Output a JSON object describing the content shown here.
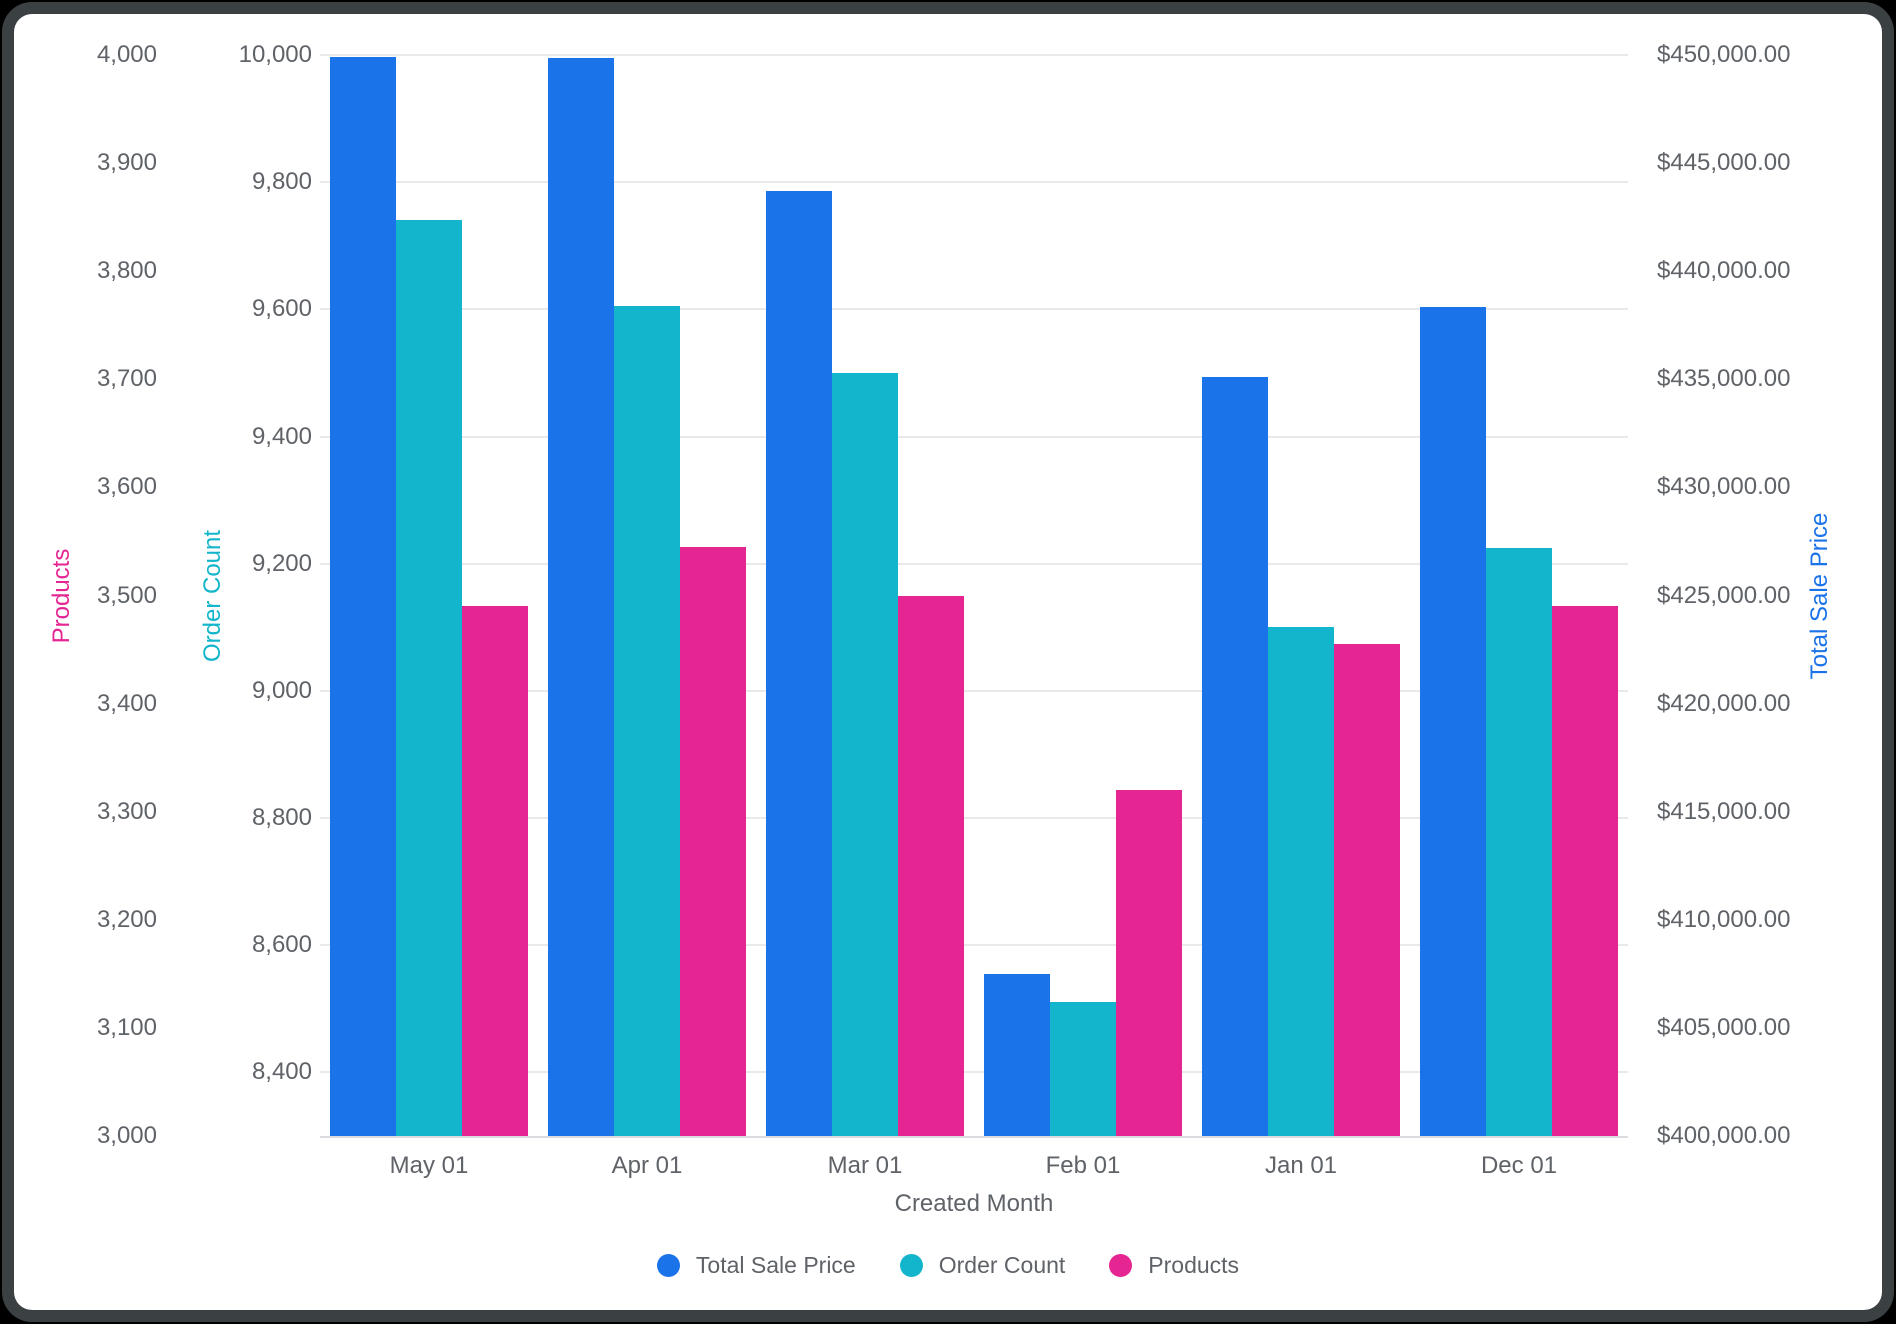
{
  "frame": {
    "outer_background": "#000000",
    "border_color": "#3B4043",
    "card_background": "#FFFFFF"
  },
  "styles": {
    "tick_label_color": "#5F6368",
    "grid_color": "#E9E9E9",
    "baseline_color": "#DADCE0"
  },
  "chart_data": {
    "type": "bar",
    "categories": [
      "May 01",
      "Apr 01",
      "Mar 01",
      "Feb 01",
      "Jan 01",
      "Dec 01"
    ],
    "x_axis": {
      "title": "Created Month"
    },
    "axes": [
      {
        "id": "products",
        "title": "Products",
        "color": "#E52592",
        "side": "left-outer",
        "min": 3000,
        "max": 4000,
        "tick_values": [
          4000,
          3900,
          3800,
          3700,
          3600,
          3500,
          3400,
          3300,
          3200,
          3100,
          3000
        ],
        "tick_labels": [
          "4,000",
          "3,900",
          "3,800",
          "3,700",
          "3,600",
          "3,500",
          "3,400",
          "3,300",
          "3,200",
          "3,100",
          "3,000"
        ]
      },
      {
        "id": "order_count",
        "title": "Order Count",
        "color": "#12B5CB",
        "side": "left-inner",
        "min": 8300,
        "max": 10000,
        "tick_values": [
          10000,
          9800,
          9600,
          9400,
          9200,
          9000,
          8800,
          8600,
          8400
        ],
        "tick_labels": [
          "10,000",
          "9,800",
          "9,600",
          "9,400",
          "9,200",
          "9,000",
          "8,800",
          "8,600",
          "8,400"
        ]
      },
      {
        "id": "total_sale_price",
        "title": "Total Sale Price",
        "color": "#1A73E8",
        "side": "right",
        "min": 400000,
        "max": 450000,
        "tick_values": [
          450000,
          445000,
          440000,
          435000,
          430000,
          425000,
          420000,
          415000,
          410000,
          405000,
          400000
        ],
        "tick_labels": [
          "$450,000.00",
          "$445,000.00",
          "$440,000.00",
          "$435,000.00",
          "$430,000.00",
          "$425,000.00",
          "$420,000.00",
          "$415,000.00",
          "$410,000.00",
          "$405,000.00",
          "$400,000.00"
        ]
      }
    ],
    "series": [
      {
        "name": "Total Sale Price",
        "axis": "total_sale_price",
        "color": "#1A73E8",
        "values": [
          449900,
          449870,
          443700,
          407500,
          435100,
          438350
        ]
      },
      {
        "name": "Order Count",
        "axis": "order_count",
        "color": "#12B5CB",
        "values": [
          9740,
          9605,
          9500,
          8510,
          9100,
          9225
        ]
      },
      {
        "name": "Products",
        "axis": "products",
        "color": "#E52592",
        "values": [
          3490,
          3545,
          3500,
          3320,
          3455,
          3490
        ]
      }
    ],
    "legend": {
      "position": "bottom",
      "items": [
        "Total Sale Price",
        "Order Count",
        "Products"
      ]
    },
    "grid": {
      "show": true,
      "source_axis": "order_count"
    }
  }
}
